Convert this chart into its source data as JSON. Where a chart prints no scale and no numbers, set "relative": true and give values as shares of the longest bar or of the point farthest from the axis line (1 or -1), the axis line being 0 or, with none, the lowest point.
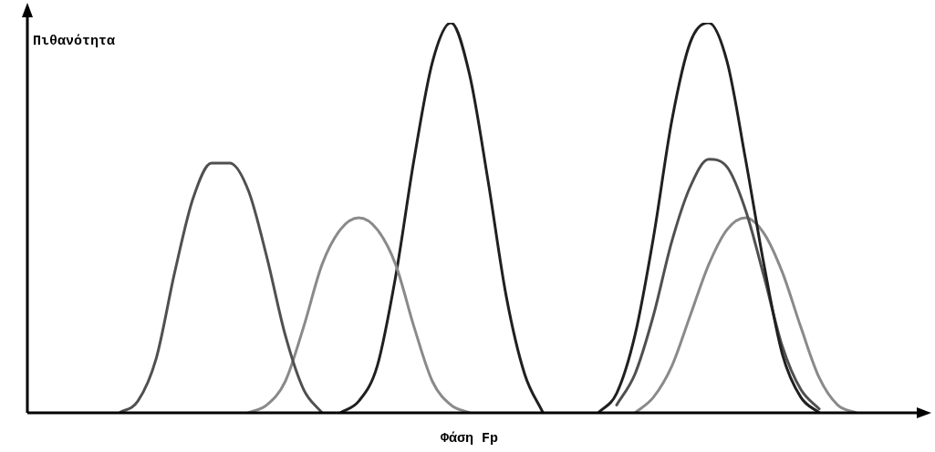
{
  "chart_data": {
    "type": "line",
    "relative": true,
    "xlabel": "Φάση Fp",
    "ylabel": "Πιθανότητα",
    "legend": false,
    "marker": "none",
    "line_style": "solid",
    "categories": [
      null,
      null,
      null,
      null,
      null,
      null,
      null,
      null,
      null,
      null,
      null,
      null,
      null,
      null,
      null,
      null,
      null,
      null,
      null,
      null,
      null,
      null,
      null,
      null,
      null,
      null,
      null,
      null,
      null,
      null,
      null,
      null,
      null,
      null,
      null,
      null,
      null,
      null,
      null,
      null,
      null,
      null,
      null,
      null,
      null,
      null,
      null,
      null,
      null
    ],
    "series": [
      {
        "color": "#505050",
        "values": [
          null,
          null,
          null,
          null,
          null,
          0,
          0.03,
          0.14,
          0.36,
          0.55,
          0.64,
          0.64,
          0.57,
          0.4,
          0.2,
          0.06,
          0,
          null,
          null,
          null,
          null,
          null,
          null,
          null,
          null,
          null,
          null,
          null,
          null,
          null,
          null,
          null,
          null,
          null,
          null,
          null,
          null,
          null,
          null,
          null,
          null,
          null,
          null,
          null,
          null,
          null,
          null,
          null,
          null
        ]
      },
      {
        "color": "#8a8a8a",
        "values": [
          null,
          null,
          null,
          null,
          null,
          null,
          null,
          null,
          null,
          null,
          null,
          null,
          0,
          0.02,
          0.08,
          0.22,
          0.38,
          0.47,
          0.5,
          0.47,
          0.38,
          0.22,
          0.08,
          0.02,
          0,
          null,
          null,
          null,
          null,
          null,
          null,
          null,
          null,
          null,
          null,
          null,
          null,
          null,
          null,
          null,
          null,
          null,
          null,
          null,
          null,
          null,
          null,
          null,
          null
        ]
      },
      {
        "color": "#202020",
        "values": [
          null,
          null,
          null,
          null,
          null,
          null,
          null,
          null,
          null,
          null,
          null,
          null,
          null,
          null,
          null,
          null,
          null,
          0,
          0.03,
          0.12,
          0.35,
          0.65,
          0.9,
          1,
          0.87,
          0.6,
          0.3,
          0.1,
          0,
          null,
          null,
          null,
          null,
          null,
          null,
          null,
          null,
          null,
          null,
          null,
          null,
          null,
          null,
          null,
          null,
          null,
          null,
          null,
          null
        ]
      },
      {
        "color": "#202020",
        "values": [
          null,
          null,
          null,
          null,
          null,
          null,
          null,
          null,
          null,
          null,
          null,
          null,
          null,
          null,
          null,
          null,
          null,
          null,
          null,
          null,
          null,
          null,
          null,
          null,
          null,
          null,
          null,
          null,
          null,
          null,
          null,
          0,
          0.05,
          0.2,
          0.45,
          0.75,
          0.95,
          1,
          0.9,
          0.65,
          0.38,
          0.15,
          0.04,
          0,
          null,
          null,
          null,
          null,
          null
        ]
      },
      {
        "color": "#505050",
        "values": [
          null,
          null,
          null,
          null,
          null,
          null,
          null,
          null,
          null,
          null,
          null,
          null,
          null,
          null,
          null,
          null,
          null,
          null,
          null,
          null,
          null,
          null,
          null,
          null,
          null,
          null,
          null,
          null,
          null,
          null,
          null,
          null,
          0.02,
          0.1,
          0.25,
          0.44,
          0.58,
          0.65,
          0.63,
          0.52,
          0.35,
          0.17,
          0.06,
          0.01,
          null,
          null,
          null,
          null,
          null
        ]
      },
      {
        "color": "#8a8a8a",
        "values": [
          null,
          null,
          null,
          null,
          null,
          null,
          null,
          null,
          null,
          null,
          null,
          null,
          null,
          null,
          null,
          null,
          null,
          null,
          null,
          null,
          null,
          null,
          null,
          null,
          null,
          null,
          null,
          null,
          null,
          null,
          null,
          null,
          null,
          0,
          0.04,
          0.12,
          0.25,
          0.38,
          0.47,
          0.5,
          0.46,
          0.36,
          0.22,
          0.09,
          0.02,
          0,
          null,
          null,
          null
        ]
      }
    ]
  }
}
